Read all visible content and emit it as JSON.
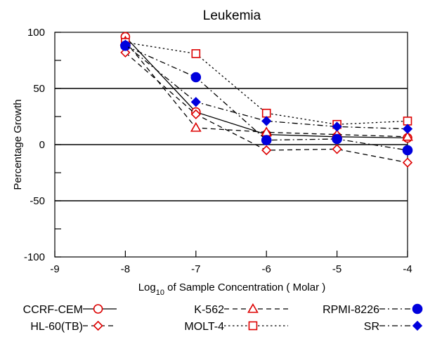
{
  "chart_data": {
    "type": "line",
    "title": "Leukemia",
    "xlabel": {
      "prefix": "Log",
      "sub": "10",
      "suffix": " of Sample Concentration ( Molar )"
    },
    "ylabel": "Percentage Growth",
    "xlim": [
      -9,
      -4
    ],
    "ylim": [
      -100,
      100
    ],
    "x_ticks": [
      -9,
      -8,
      -7,
      -6,
      -5,
      -4
    ],
    "x_tick_labels": [
      "-9",
      "-8",
      "-7",
      "-6",
      "-5",
      "-4"
    ],
    "y_ticks": [
      -100,
      -50,
      0,
      50,
      100
    ],
    "y_tick_labels": [
      "-100",
      "-50",
      "0",
      "50",
      "100"
    ],
    "y_gridlines": [
      -50,
      0,
      50
    ],
    "legend_placement": "bottom",
    "x": [
      -8,
      -7,
      -6,
      -5,
      -4
    ],
    "series": [
      {
        "name": "CCRF-CEM",
        "values": [
          96,
          29,
          9,
          7,
          6
        ],
        "color": "#dd0000",
        "marker": "circle-open",
        "dash": "solid"
      },
      {
        "name": "HL-60(TB)",
        "values": [
          82,
          27,
          -5,
          -4,
          -16
        ],
        "color": "#dd0000",
        "marker": "diamond-open",
        "dash": "dashed"
      },
      {
        "name": "K-562",
        "values": [
          92,
          15,
          11,
          9,
          7
        ],
        "color": "#dd0000",
        "marker": "triangle-open",
        "dash": "dashed"
      },
      {
        "name": "MOLT-4",
        "values": [
          91,
          81,
          28,
          18,
          21
        ],
        "color": "#dd0000",
        "marker": "square-open",
        "dash": "dotted"
      },
      {
        "name": "RPMI-8226",
        "values": [
          88,
          60,
          4,
          5,
          -5
        ],
        "color": "#0000dd",
        "marker": "circle-filled",
        "dash": "dashdot"
      },
      {
        "name": "SR",
        "values": [
          89,
          38,
          21,
          16,
          14
        ],
        "color": "#0000dd",
        "marker": "diamond-filled",
        "dash": "dashdot"
      }
    ]
  }
}
